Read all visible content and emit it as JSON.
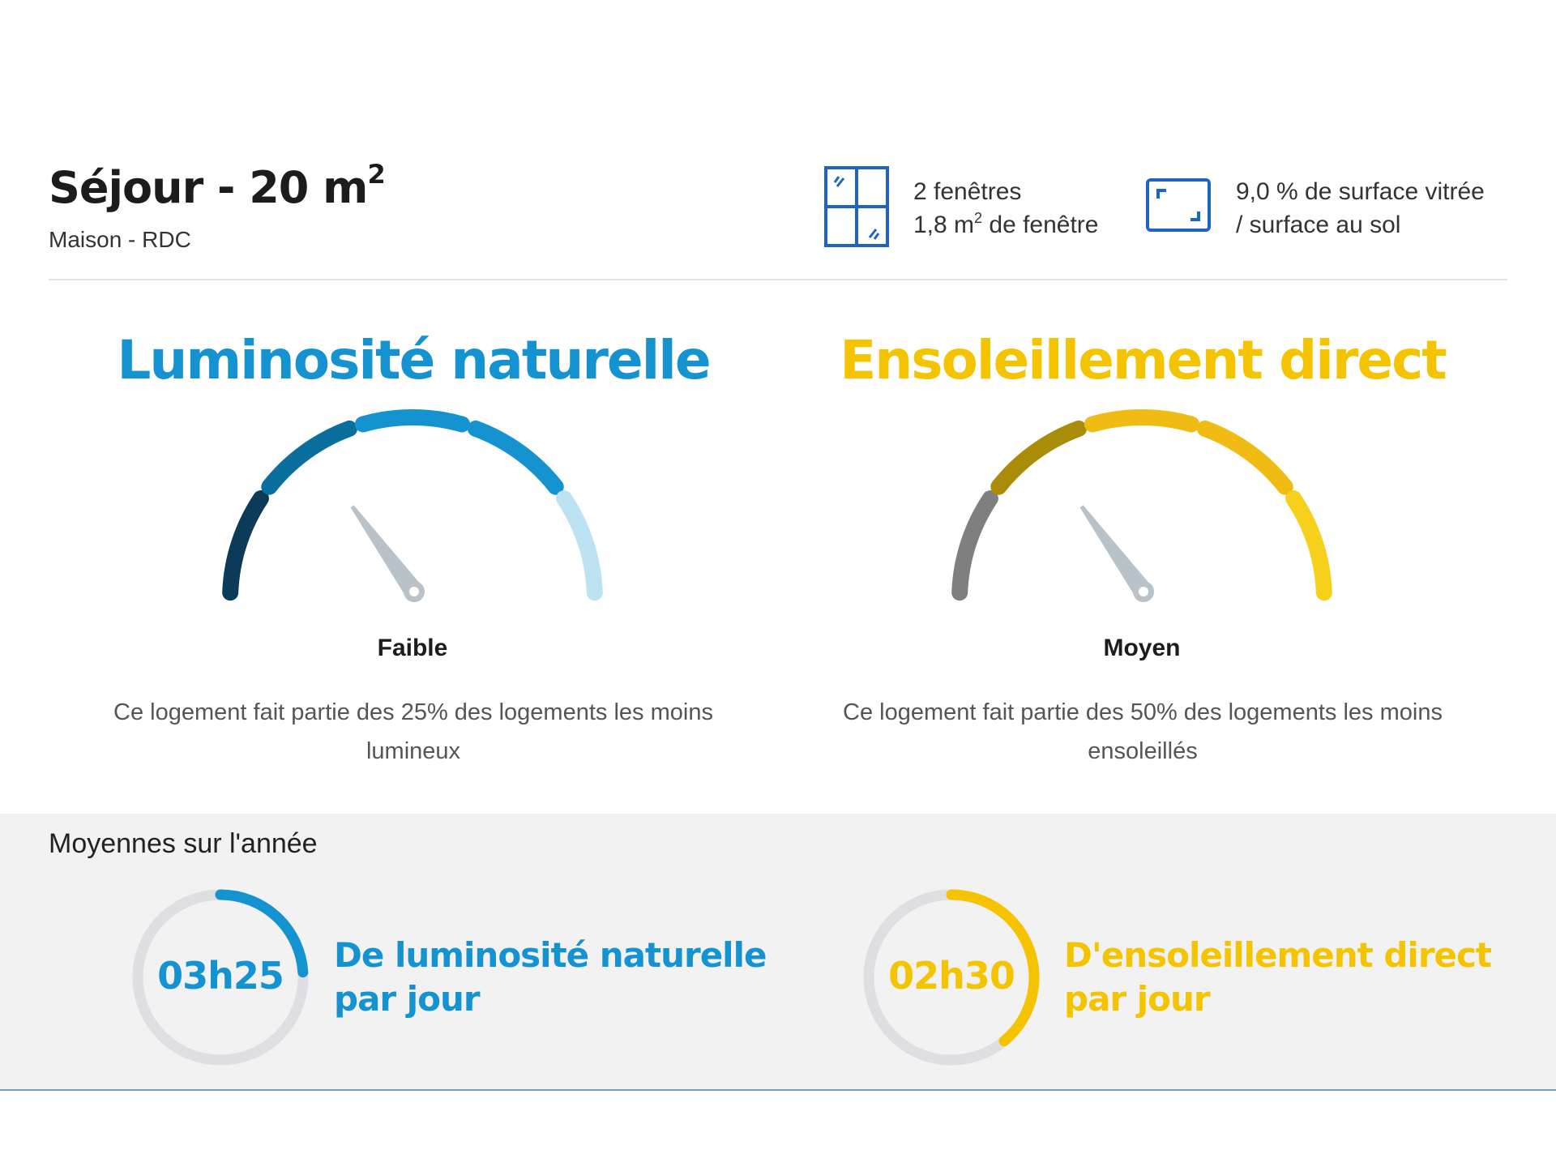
{
  "header": {
    "title": "Séjour - 20 m",
    "title_sup": "2",
    "subtitle": "Maison - RDC",
    "windows": {
      "icon": "window-icon",
      "line1": "2 fenêtres",
      "line2_a": "1,8 m",
      "line2_sup": "2",
      "line2_b": " de fenêtre"
    },
    "surface": {
      "icon": "floor-area-icon",
      "line1": "9,0 % de surface vitrée",
      "line2": "/ surface au sol"
    }
  },
  "luminosity": {
    "title": "Luminosité naturelle",
    "level_label": "Faible",
    "level_index": 1,
    "level_count": 5,
    "description": "Ce logement fait partie des 25% des logements les moins lumineux",
    "segment_colors": [
      "#0b3b58",
      "#0b6f9e",
      "#1592d0",
      "#1592d0",
      "#bde2f1"
    ],
    "color": "#1592d0"
  },
  "sunshine": {
    "title": "Ensoleillement direct",
    "level_label": "Moyen",
    "level_index": 1,
    "level_count": 5,
    "description": "Ce logement fait partie des 50% des logements les moins ensoleillés",
    "segment_colors": [
      "#7f7f7f",
      "#a98c08",
      "#f0bc14",
      "#f0bc14",
      "#f7d01c"
    ],
    "color": "#f5c400"
  },
  "averages": {
    "title": "Moyennes sur l'année",
    "luminosity": {
      "value": "03h25",
      "caption_line1": "De luminosité naturelle",
      "caption_line2": "par jour",
      "fraction": 0.24,
      "color": "#1592d0"
    },
    "sunshine": {
      "value": "02h30",
      "caption_line1": "D'ensoleillement direct",
      "caption_line2": "par jour",
      "fraction": 0.39,
      "color": "#f5c400"
    }
  },
  "colors": {
    "track": "#dddfe3",
    "needle": "#b9c2c8"
  }
}
